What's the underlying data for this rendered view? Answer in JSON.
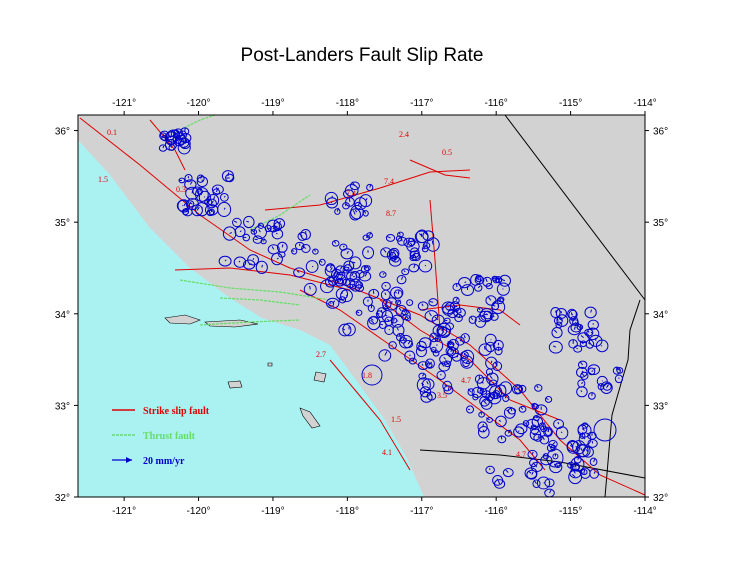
{
  "title": "Post-Landers Fault Slip Rate",
  "map": {
    "lonlim": [
      -121.62,
      -114
    ],
    "latlim": [
      32,
      36.17
    ],
    "lon_ticks": [
      {
        "value": -121,
        "label": "-121°"
      },
      {
        "value": -120,
        "label": "-120°"
      },
      {
        "value": -119,
        "label": "-119°"
      },
      {
        "value": -118,
        "label": "-118°"
      },
      {
        "value": -117,
        "label": "-117°"
      },
      {
        "value": -116,
        "label": "-116°"
      },
      {
        "value": -115,
        "label": "-115°"
      },
      {
        "value": -114,
        "label": "-114°"
      }
    ],
    "lat_ticks": [
      {
        "value": 32,
        "label": "32°"
      },
      {
        "value": 33,
        "label": "33°"
      },
      {
        "value": 34,
        "label": "34°"
      },
      {
        "value": 35,
        "label": "35°"
      },
      {
        "value": 36,
        "label": "36°"
      }
    ],
    "rate_labels": [
      "0.1",
      "1.5",
      "0.3",
      "2.4",
      "0.5",
      "7.4",
      "7.4",
      "8.7",
      "2.7",
      "1.8",
      "4.7",
      "3.5",
      "1.5",
      "4.1",
      "4.7"
    ],
    "legend": [
      {
        "label": "Strike slip fault",
        "color": "#e00000"
      },
      {
        "label": "Thrust fault",
        "color": "#66dd66"
      },
      {
        "label": "20 mm/yr",
        "color": "#0000cc"
      }
    ]
  }
}
